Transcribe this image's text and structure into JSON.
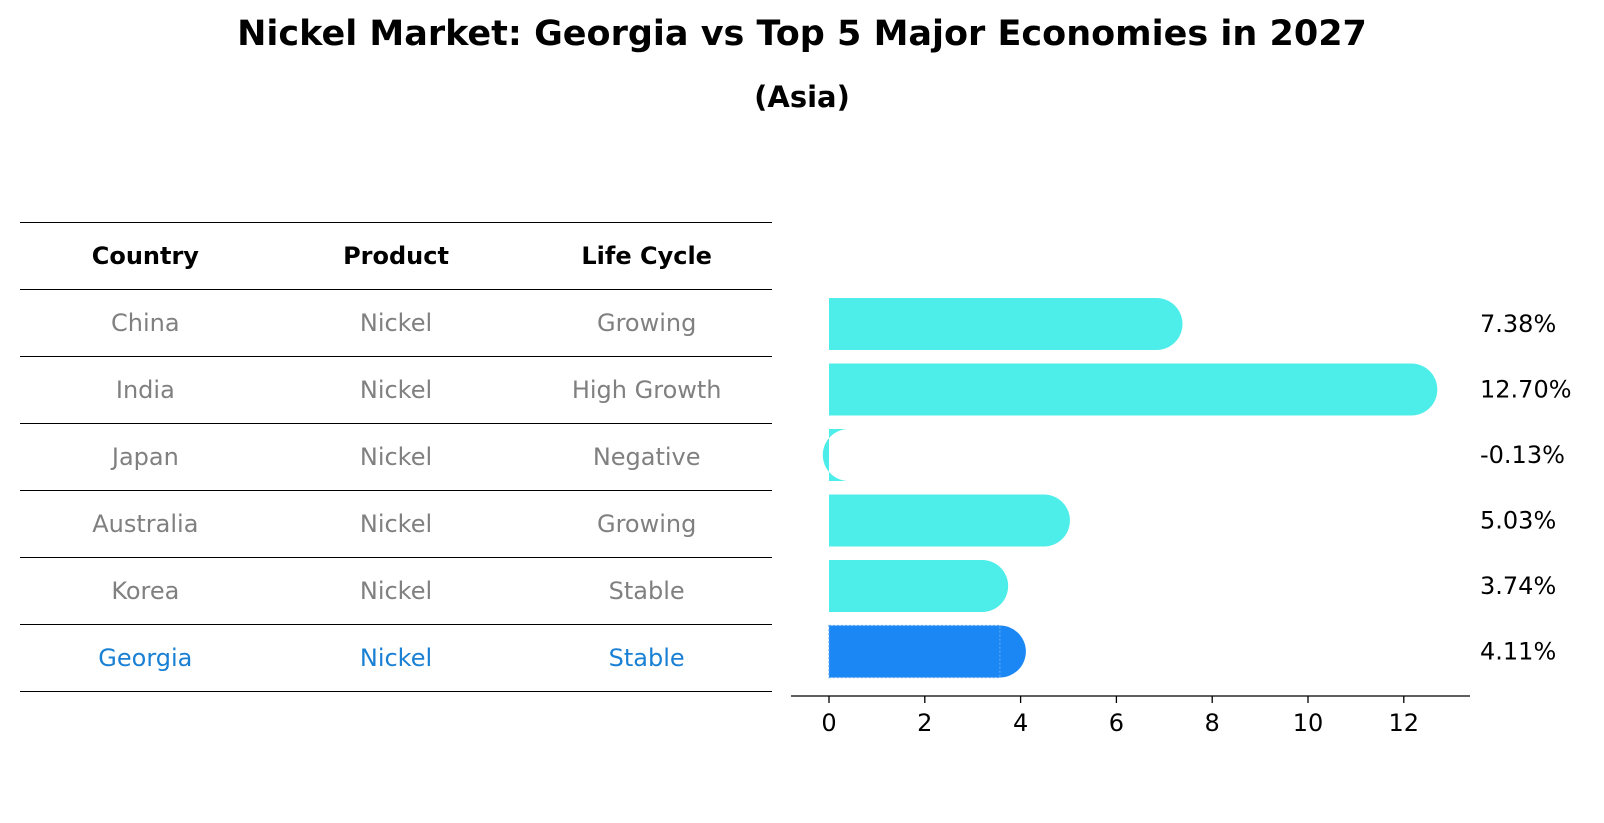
{
  "title": "Nickel Market: Georgia vs Top 5 Major Economies in 2027",
  "subtitle": "(Asia)",
  "table": {
    "headers": [
      "Country",
      "Product",
      "Life Cycle"
    ],
    "rows": [
      {
        "country": "China",
        "product": "Nickel",
        "life_cycle": "Growing"
      },
      {
        "country": "India",
        "product": "Nickel",
        "life_cycle": "High Growth"
      },
      {
        "country": "Japan",
        "product": "Nickel",
        "life_cycle": "Negative"
      },
      {
        "country": "Australia",
        "product": "Nickel",
        "life_cycle": "Growing"
      },
      {
        "country": "Korea",
        "product": "Nickel",
        "life_cycle": "Stable"
      },
      {
        "country": "Georgia",
        "product": "Nickel",
        "life_cycle": "Stable"
      }
    ]
  },
  "colors": {
    "bar": "#4dede9",
    "highlight_bar": "#1a87f5",
    "highlight_text": "#1a80d4",
    "muted_text": "#808080"
  },
  "chart_data": {
    "type": "bar",
    "orientation": "horizontal",
    "categories": [
      "China",
      "India",
      "Japan",
      "Australia",
      "Korea",
      "Georgia"
    ],
    "values": [
      7.38,
      12.7,
      -0.13,
      5.03,
      3.74,
      4.11
    ],
    "value_labels": [
      "7.38%",
      "12.70%",
      "-0.13%",
      "5.03%",
      "3.74%",
      "4.11%"
    ],
    "highlight": "Georgia",
    "xlim": [
      -0.8,
      13.4
    ],
    "xticks": [
      0,
      2,
      4,
      6,
      8,
      10,
      12
    ],
    "xtick_labels": [
      "0",
      "2",
      "4",
      "6",
      "8",
      "10",
      "12"
    ],
    "title": "Nickel Market: Georgia vs Top 5 Major Economies in 2027",
    "xlabel": "",
    "ylabel": "",
    "grid": false,
    "legend": "none"
  }
}
